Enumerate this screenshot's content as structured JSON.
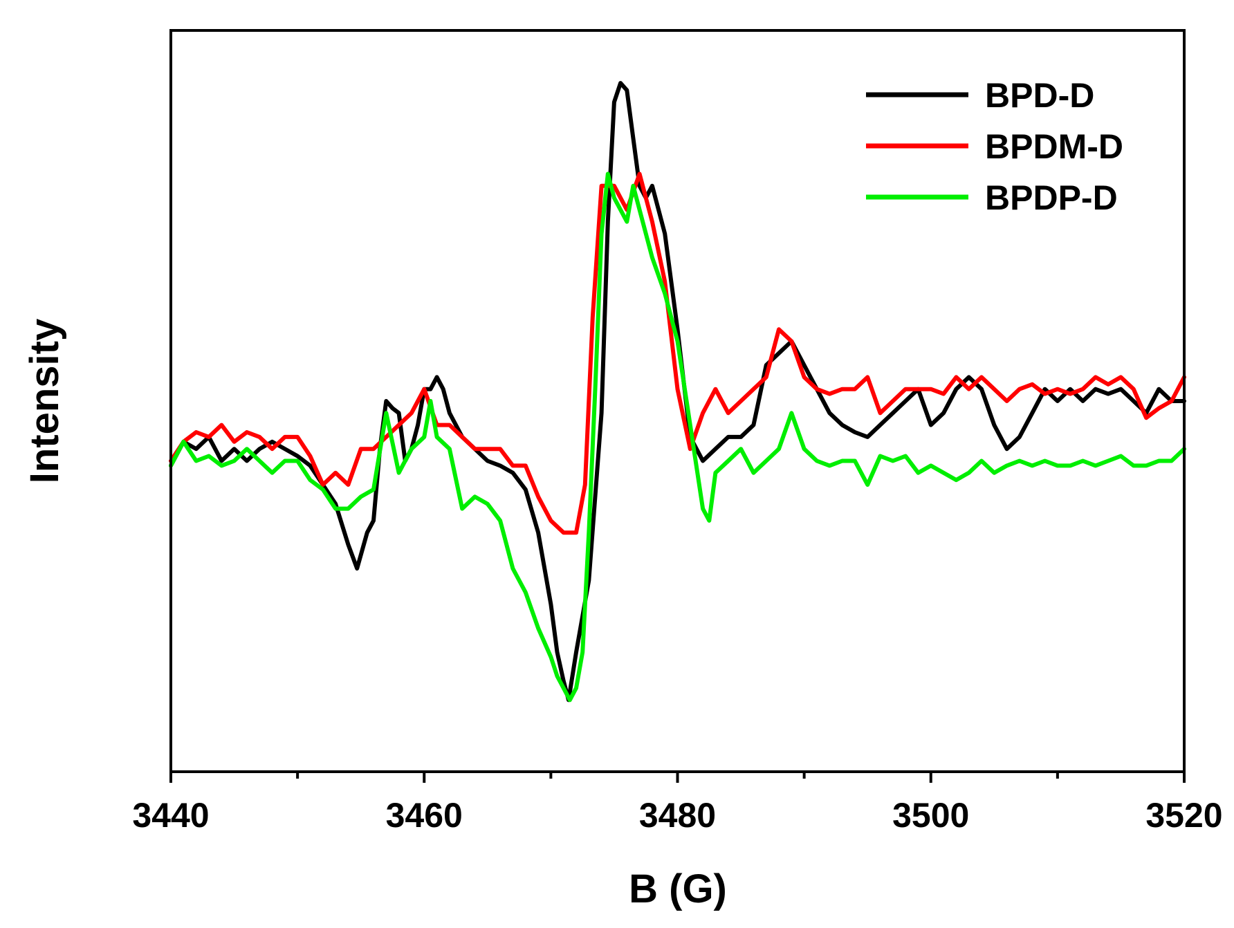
{
  "chart_data": {
    "type": "line",
    "title": "",
    "xlabel": "B (G)",
    "ylabel": "Intensity",
    "xlim": [
      3440,
      3520
    ],
    "ylim": [
      -1.3,
      1.8
    ],
    "x_ticks": [
      3440,
      3460,
      3480,
      3500,
      3520
    ],
    "x_tick_labels": [
      "3440",
      "3460",
      "3480",
      "3500",
      "3520"
    ],
    "x_minor_step": 10,
    "y_ticks_shown": false,
    "grid": false,
    "legend": {
      "position": "top-right",
      "entries": [
        "BPD-D",
        "BPDM-D",
        "BPDP-D"
      ]
    },
    "series": [
      {
        "name": "BPD-D",
        "color": "#000000",
        "x": [
          3440,
          3441,
          3442,
          3443,
          3444,
          3445,
          3446,
          3447,
          3448,
          3449,
          3450,
          3451,
          3452,
          3453,
          3454,
          3454.7,
          3455.5,
          3456,
          3456.5,
          3457,
          3457.5,
          3458,
          3458.5,
          3459,
          3459.5,
          3460,
          3460.5,
          3461,
          3461.5,
          3462,
          3463,
          3464,
          3465,
          3466,
          3467,
          3468,
          3469,
          3470,
          3470.5,
          3471,
          3471.4,
          3472,
          3473,
          3474,
          3474.5,
          3475,
          3475.5,
          3476,
          3476.5,
          3477,
          3477.5,
          3478,
          3479,
          3480,
          3481,
          3482,
          3483,
          3484,
          3485,
          3486,
          3487,
          3488,
          3489,
          3490,
          3491,
          3492,
          3493,
          3494,
          3495,
          3496,
          3497,
          3498,
          3499,
          3500,
          3501,
          3502,
          3503,
          3504,
          3505,
          3506,
          3507,
          3508,
          3509,
          3510,
          3511,
          3512,
          3513,
          3514,
          3515,
          3516,
          3517,
          3518,
          3519,
          3520
        ],
        "y": [
          -0.02,
          0.08,
          0.05,
          0.1,
          0.0,
          0.05,
          0.0,
          0.05,
          0.08,
          0.05,
          0.02,
          -0.02,
          -0.1,
          -0.18,
          -0.35,
          -0.45,
          -0.3,
          -0.25,
          0.05,
          0.25,
          0.22,
          0.2,
          0.0,
          0.05,
          0.15,
          0.3,
          0.3,
          0.35,
          0.3,
          0.2,
          0.1,
          0.05,
          0.0,
          -0.02,
          -0.05,
          -0.12,
          -0.3,
          -0.6,
          -0.8,
          -0.92,
          -1.0,
          -0.8,
          -0.5,
          0.2,
          1.0,
          1.5,
          1.58,
          1.55,
          1.35,
          1.15,
          1.1,
          1.15,
          0.95,
          0.55,
          0.1,
          0.0,
          0.05,
          0.1,
          0.1,
          0.15,
          0.4,
          0.45,
          0.5,
          0.4,
          0.3,
          0.2,
          0.15,
          0.12,
          0.1,
          0.15,
          0.2,
          0.25,
          0.3,
          0.15,
          0.2,
          0.3,
          0.35,
          0.3,
          0.15,
          0.05,
          0.1,
          0.2,
          0.3,
          0.25,
          0.3,
          0.25,
          0.3,
          0.28,
          0.3,
          0.25,
          0.2,
          0.3,
          0.25,
          0.25
        ]
      },
      {
        "name": "BPDM-D",
        "color": "#ff0000",
        "x": [
          3440,
          3441,
          3442,
          3443,
          3444,
          3445,
          3446,
          3447,
          3448,
          3449,
          3450,
          3451,
          3452,
          3453,
          3454,
          3455,
          3456,
          3457,
          3458,
          3459,
          3460,
          3461,
          3462,
          3463,
          3464,
          3465,
          3466,
          3467,
          3468,
          3469,
          3470,
          3471,
          3472,
          3472.7,
          3473.3,
          3474,
          3475,
          3476,
          3477,
          3478,
          3479,
          3480,
          3481,
          3482,
          3483,
          3484,
          3485,
          3486,
          3487,
          3488,
          3489,
          3490,
          3491,
          3492,
          3493,
          3494,
          3495,
          3496,
          3497,
          3498,
          3499,
          3500,
          3501,
          3502,
          3503,
          3504,
          3505,
          3506,
          3507,
          3508,
          3509,
          3510,
          3511,
          3512,
          3513,
          3514,
          3515,
          3516,
          3517,
          3518,
          3519,
          3520
        ],
        "y": [
          0.0,
          0.08,
          0.12,
          0.1,
          0.15,
          0.08,
          0.12,
          0.1,
          0.05,
          0.1,
          0.1,
          0.02,
          -0.1,
          -0.05,
          -0.1,
          0.05,
          0.05,
          0.1,
          0.15,
          0.2,
          0.3,
          0.15,
          0.15,
          0.1,
          0.05,
          0.05,
          0.05,
          -0.02,
          -0.02,
          -0.15,
          -0.25,
          -0.3,
          -0.3,
          -0.1,
          0.6,
          1.15,
          1.15,
          1.05,
          1.2,
          1.0,
          0.75,
          0.3,
          0.05,
          0.2,
          0.3,
          0.2,
          0.25,
          0.3,
          0.35,
          0.55,
          0.5,
          0.35,
          0.3,
          0.28,
          0.3,
          0.3,
          0.35,
          0.2,
          0.25,
          0.3,
          0.3,
          0.3,
          0.28,
          0.35,
          0.3,
          0.35,
          0.3,
          0.25,
          0.3,
          0.32,
          0.28,
          0.3,
          0.28,
          0.3,
          0.35,
          0.32,
          0.35,
          0.3,
          0.18,
          0.22,
          0.25,
          0.35
        ]
      },
      {
        "name": "BPDP-D",
        "color": "#00ee00",
        "x": [
          3440,
          3441,
          3442,
          3443,
          3444,
          3445,
          3446,
          3447,
          3448,
          3449,
          3450,
          3451,
          3452,
          3453,
          3454,
          3455,
          3456,
          3457,
          3458,
          3459,
          3460,
          3460.5,
          3461,
          3462,
          3463,
          3464,
          3465,
          3466,
          3467,
          3468,
          3469,
          3470,
          3470.5,
          3471,
          3471.5,
          3472,
          3472.5,
          3473,
          3473.5,
          3474,
          3474.5,
          3475,
          3475.5,
          3476,
          3476.5,
          3477,
          3478,
          3479,
          3480,
          3481,
          3482,
          3482.5,
          3483,
          3484,
          3485,
          3486,
          3487,
          3488,
          3489,
          3490,
          3491,
          3492,
          3493,
          3494,
          3495,
          3496,
          3497,
          3498,
          3499,
          3500,
          3501,
          3502,
          3503,
          3504,
          3505,
          3506,
          3507,
          3508,
          3509,
          3510,
          3511,
          3512,
          3513,
          3514,
          3515,
          3516,
          3517,
          3518,
          3519,
          3520
        ],
        "y": [
          -0.02,
          0.08,
          0.0,
          0.02,
          -0.02,
          0.0,
          0.05,
          0.0,
          -0.05,
          0.0,
          0.0,
          -0.08,
          -0.12,
          -0.2,
          -0.2,
          -0.15,
          -0.12,
          0.2,
          -0.05,
          0.05,
          0.1,
          0.25,
          0.1,
          0.05,
          -0.2,
          -0.15,
          -0.18,
          -0.25,
          -0.45,
          -0.55,
          -0.7,
          -0.82,
          -0.9,
          -0.95,
          -1.0,
          -0.95,
          -0.8,
          -0.3,
          0.3,
          0.95,
          1.2,
          1.1,
          1.05,
          1.0,
          1.15,
          1.05,
          0.85,
          0.7,
          0.5,
          0.15,
          -0.2,
          -0.25,
          -0.05,
          0.0,
          0.05,
          -0.05,
          0.0,
          0.05,
          0.2,
          0.05,
          0.0,
          -0.02,
          0.0,
          0.0,
          -0.1,
          0.02,
          0.0,
          0.02,
          -0.05,
          -0.02,
          -0.05,
          -0.08,
          -0.05,
          0.0,
          -0.05,
          -0.02,
          0.0,
          -0.02,
          0.0,
          -0.02,
          -0.02,
          0.0,
          -0.02,
          0.0,
          0.02,
          -0.02,
          -0.02,
          0.0,
          0.0,
          0.05
        ]
      }
    ]
  }
}
